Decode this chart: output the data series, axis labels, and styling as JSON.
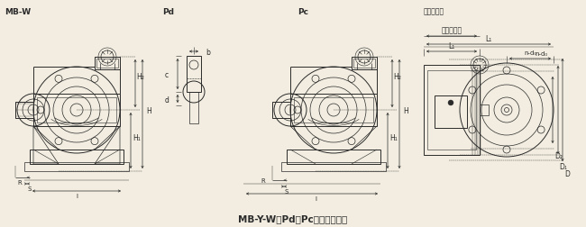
{
  "title": "MB-Y-W（Pd、Pc）型变减速器",
  "bg_color": "#f2ede0",
  "line_color": "#2a2a2a",
  "label_MB_W": "MB-W",
  "label_Pd": "Pd",
  "label_Pc": "Pc",
  "label_motor": "按电机尺寸"
}
